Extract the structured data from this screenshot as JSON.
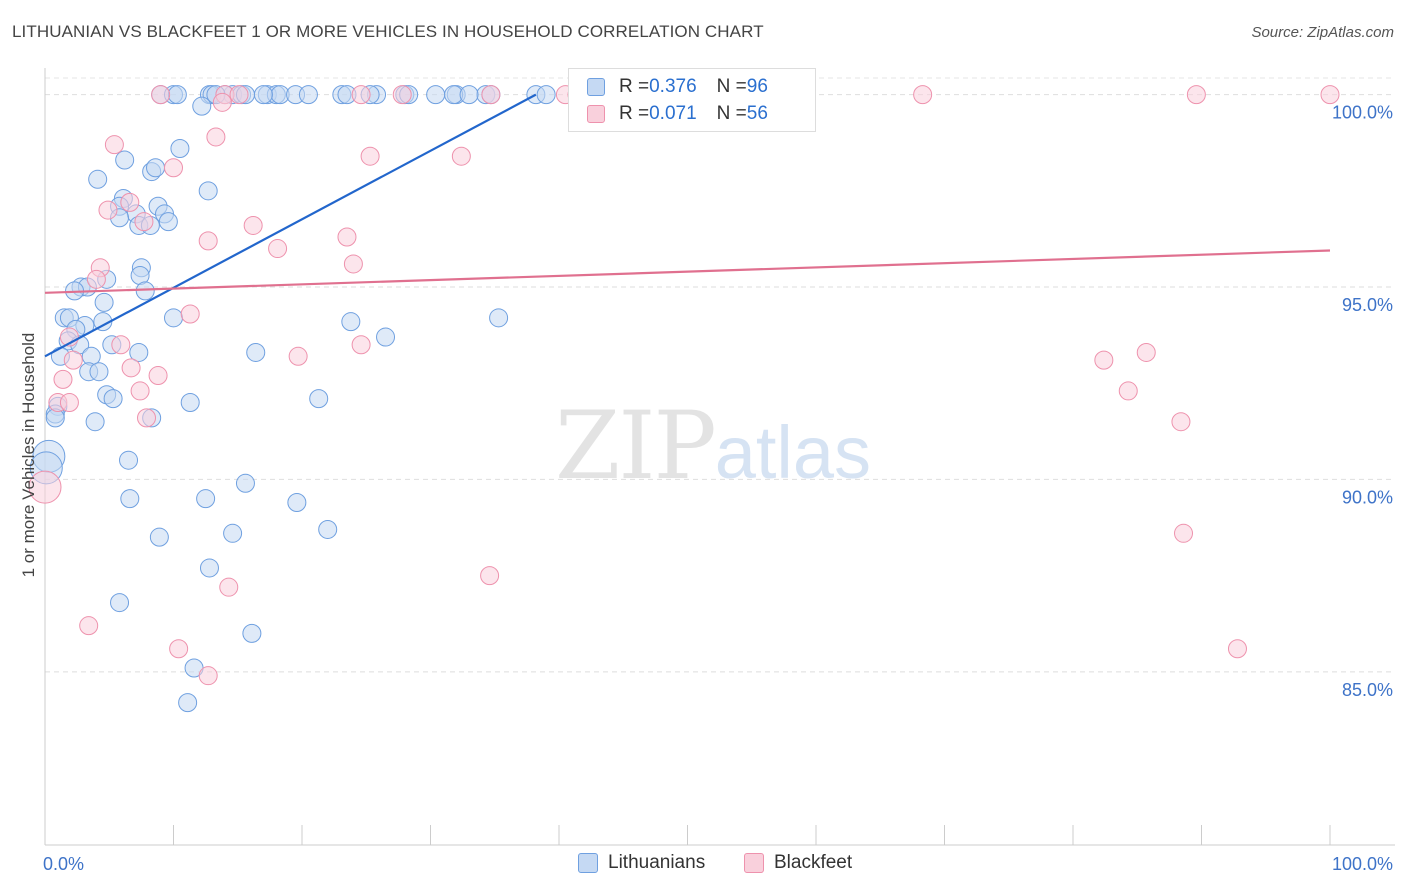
{
  "title": "LITHUANIAN VS BLACKFEET 1 OR MORE VEHICLES IN HOUSEHOLD CORRELATION CHART",
  "source": "Source: ZipAtlas.com",
  "watermark": {
    "zip": "ZIP",
    "atlas": "atlas"
  },
  "colors": {
    "lithuanians": "#6fa0e0",
    "lithuanians_fill": "#c5d9f3",
    "blackfeet": "#ee92ad",
    "blackfeet_fill": "#f9d0dc",
    "blue_line": "#2266cc",
    "pink_line": "#e0708f",
    "tick_text": "#3e73c8"
  },
  "legend": {
    "rows": [
      {
        "r_label": "R = ",
        "r_value": "0.376",
        "n_label": "N = ",
        "n_value": "96"
      },
      {
        "r_label": "R = ",
        "r_value": "0.071",
        "n_label": "N = ",
        "n_value": "56"
      }
    ]
  },
  "bottom_legend": {
    "lithuanians": "Lithuanians",
    "blackfeet": "Blackfeet"
  },
  "chart_data": {
    "type": "scatter",
    "title": "LITHUANIAN VS BLACKFEET 1 OR MORE VEHICLES IN HOUSEHOLD CORRELATION CHART",
    "xlabel": "",
    "ylabel": "1 or more Vehicles in Household",
    "xlim": [
      0,
      100
    ],
    "ylim": [
      80.5,
      100.9
    ],
    "x_tick_labels": [
      "0.0%",
      "100.0%"
    ],
    "y_ticks": [
      100,
      95,
      90,
      85
    ],
    "y_tick_labels": [
      "100.0%",
      "95.0%",
      "90.0%",
      "85.0%"
    ],
    "grid": true,
    "legend_position": "top-center",
    "series": [
      {
        "name": "Lithuanians",
        "points": [
          [
            9.0,
            100
          ],
          [
            10.0,
            100
          ],
          [
            10.3,
            100
          ],
          [
            12.8,
            100
          ],
          [
            13.0,
            100
          ],
          [
            14.6,
            100
          ],
          [
            15.3,
            100
          ],
          [
            15.6,
            100
          ],
          [
            17.3,
            100
          ],
          [
            18.0,
            100
          ],
          [
            18.3,
            100
          ],
          [
            19.5,
            100
          ],
          [
            23.1,
            100
          ],
          [
            25.8,
            100
          ],
          [
            25.3,
            100
          ],
          [
            23.5,
            100
          ],
          [
            28.0,
            100
          ],
          [
            28.3,
            100
          ],
          [
            32.0,
            100
          ],
          [
            31.8,
            100
          ],
          [
            34.3,
            100
          ],
          [
            34.7,
            100
          ],
          [
            12.2,
            99.7
          ],
          [
            10.5,
            98.6
          ],
          [
            6.2,
            98.3
          ],
          [
            8.3,
            98.0
          ],
          [
            8.6,
            98.1
          ],
          [
            4.1,
            97.8
          ],
          [
            12.7,
            97.5
          ],
          [
            6.1,
            97.3
          ],
          [
            5.8,
            97.1
          ],
          [
            8.8,
            97.1
          ],
          [
            7.1,
            96.9
          ],
          [
            9.3,
            96.9
          ],
          [
            5.8,
            96.8
          ],
          [
            9.6,
            96.7
          ],
          [
            7.3,
            96.6
          ],
          [
            8.2,
            96.6
          ],
          [
            7.5,
            95.5
          ],
          [
            7.4,
            95.3
          ],
          [
            4.8,
            95.2
          ],
          [
            2.8,
            95.0
          ],
          [
            3.3,
            95.0
          ],
          [
            7.8,
            94.9
          ],
          [
            2.3,
            94.9
          ],
          [
            4.6,
            94.6
          ],
          [
            1.5,
            94.2
          ],
          [
            1.9,
            94.2
          ],
          [
            10.0,
            94.2
          ],
          [
            4.5,
            94.1
          ],
          [
            3.1,
            94.0
          ],
          [
            23.8,
            94.1
          ],
          [
            35.3,
            94.2
          ],
          [
            2.4,
            93.9
          ],
          [
            1.8,
            93.6
          ],
          [
            2.7,
            93.5
          ],
          [
            5.2,
            93.5
          ],
          [
            7.3,
            93.3
          ],
          [
            1.2,
            93.2
          ],
          [
            3.6,
            93.2
          ],
          [
            16.4,
            93.3
          ],
          [
            26.5,
            93.7
          ],
          [
            3.4,
            92.8
          ],
          [
            4.2,
            92.8
          ],
          [
            4.8,
            92.2
          ],
          [
            5.3,
            92.1
          ],
          [
            11.3,
            92.0
          ],
          [
            21.3,
            92.1
          ],
          [
            1.0,
            91.9
          ],
          [
            0.8,
            91.7
          ],
          [
            0.8,
            91.6
          ],
          [
            3.9,
            91.5
          ],
          [
            8.3,
            91.6
          ],
          [
            0.3,
            90.6
          ],
          [
            0.1,
            90.3
          ],
          [
            6.5,
            90.5
          ],
          [
            15.6,
            89.9
          ],
          [
            6.6,
            89.5
          ],
          [
            12.5,
            89.5
          ],
          [
            19.6,
            89.4
          ],
          [
            8.9,
            88.5
          ],
          [
            14.6,
            88.6
          ],
          [
            22.0,
            88.7
          ],
          [
            12.8,
            87.7
          ],
          [
            5.8,
            86.8
          ],
          [
            16.1,
            86.0
          ],
          [
            11.6,
            85.1
          ],
          [
            11.1,
            84.2
          ],
          [
            38.2,
            100
          ],
          [
            39.0,
            100
          ],
          [
            33.0,
            100
          ],
          [
            30.4,
            100
          ],
          [
            14.0,
            100
          ],
          [
            13.3,
            100
          ],
          [
            17.0,
            100
          ],
          [
            20.5,
            100
          ]
        ]
      },
      {
        "name": "Blackfeet",
        "points": [
          [
            9.0,
            100
          ],
          [
            14.0,
            100
          ],
          [
            15.1,
            100
          ],
          [
            24.6,
            100
          ],
          [
            27.8,
            100
          ],
          [
            34.7,
            100
          ],
          [
            40.5,
            100
          ],
          [
            41.4,
            100
          ],
          [
            46.5,
            100
          ],
          [
            54.6,
            100
          ],
          [
            68.3,
            100
          ],
          [
            89.6,
            100
          ],
          [
            100.0,
            100
          ],
          [
            13.8,
            99.8
          ],
          [
            5.4,
            98.7
          ],
          [
            13.3,
            98.9
          ],
          [
            10.0,
            98.1
          ],
          [
            25.3,
            98.4
          ],
          [
            32.4,
            98.4
          ],
          [
            6.6,
            97.2
          ],
          [
            4.9,
            97.0
          ],
          [
            7.7,
            96.7
          ],
          [
            12.7,
            96.2
          ],
          [
            16.2,
            96.6
          ],
          [
            18.1,
            96.0
          ],
          [
            23.5,
            96.3
          ],
          [
            24.0,
            95.6
          ],
          [
            4.3,
            95.5
          ],
          [
            4.0,
            95.2
          ],
          [
            11.3,
            94.3
          ],
          [
            1.9,
            93.7
          ],
          [
            5.9,
            93.5
          ],
          [
            24.6,
            93.5
          ],
          [
            19.7,
            93.2
          ],
          [
            2.2,
            93.1
          ],
          [
            6.7,
            92.9
          ],
          [
            8.8,
            92.7
          ],
          [
            1.4,
            92.6
          ],
          [
            82.4,
            93.1
          ],
          [
            85.7,
            93.3
          ],
          [
            84.3,
            92.3
          ],
          [
            7.4,
            92.3
          ],
          [
            1.0,
            92.0
          ],
          [
            1.9,
            92.0
          ],
          [
            7.9,
            91.6
          ],
          [
            88.4,
            91.5
          ],
          [
            0.0,
            89.8
          ],
          [
            88.6,
            88.6
          ],
          [
            34.6,
            87.5
          ],
          [
            14.3,
            87.2
          ],
          [
            3.4,
            86.2
          ],
          [
            10.4,
            85.6
          ],
          [
            92.8,
            85.6
          ],
          [
            12.7,
            84.9
          ],
          [
            54.8,
            100
          ],
          [
            52.1,
            100
          ]
        ]
      }
    ],
    "trend_lines": [
      {
        "series": "Lithuanians",
        "x": [
          0,
          38.2
        ],
        "y": [
          93.2,
          100.0
        ]
      },
      {
        "series": "Blackfeet",
        "x": [
          0,
          100
        ],
        "y": [
          94.85,
          95.95
        ]
      }
    ]
  }
}
